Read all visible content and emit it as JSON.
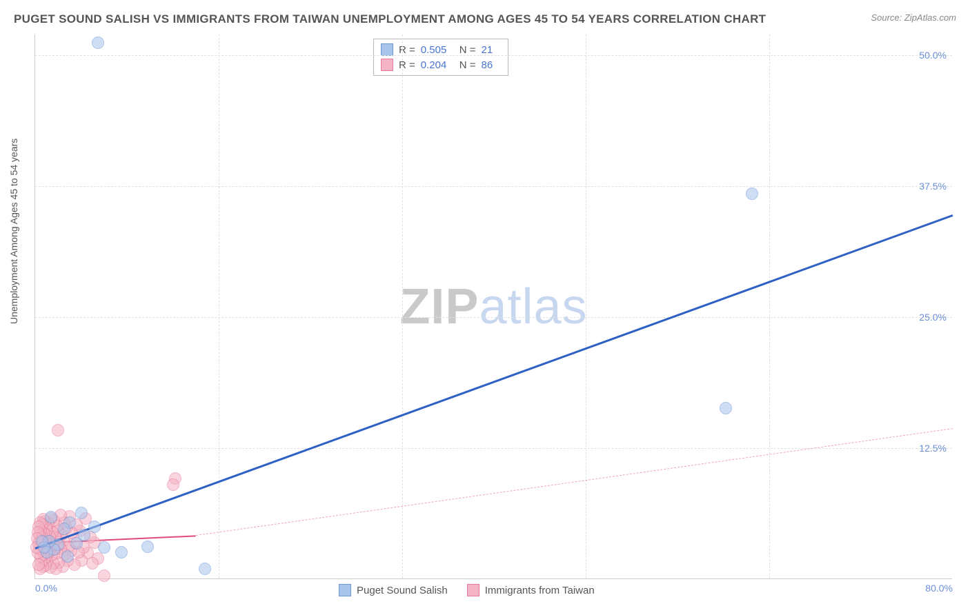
{
  "title": "PUGET SOUND SALISH VS IMMIGRANTS FROM TAIWAN UNEMPLOYMENT AMONG AGES 45 TO 54 YEARS CORRELATION CHART",
  "source": "Source: ZipAtlas.com",
  "y_axis_label": "Unemployment Among Ages 45 to 54 years",
  "watermark": {
    "part1": "ZIP",
    "part2": "atlas"
  },
  "chart": {
    "type": "scatter",
    "xlim": [
      0,
      80
    ],
    "ylim": [
      0,
      52
    ],
    "x_ticks": [
      {
        "v": 0,
        "label": "0.0%",
        "align": "left"
      },
      {
        "v": 80,
        "label": "80.0%",
        "align": "right"
      }
    ],
    "y_ticks": [
      {
        "v": 12.5,
        "label": "12.5%"
      },
      {
        "v": 25,
        "label": "25.0%"
      },
      {
        "v": 37.5,
        "label": "37.5%"
      },
      {
        "v": 50,
        "label": "50.0%"
      }
    ],
    "x_gridlines": [
      16,
      32,
      48,
      64
    ],
    "background_color": "#ffffff",
    "grid_color": "#e0e0e0",
    "series": [
      {
        "name": "Puget Sound Salish",
        "color_fill": "#a9c4ea",
        "color_stroke": "#6b95d6",
        "marker_radius": 9,
        "fill_opacity": 0.55,
        "R": "0.505",
        "N": "21",
        "trend": {
          "solid": {
            "x1": 0,
            "y1": 3.0,
            "x2": 80,
            "y2": 34.8,
            "color": "#2f61c4",
            "width": 3
          }
        },
        "points": [
          {
            "x": 5.5,
            "y": 51.2
          },
          {
            "x": 62.5,
            "y": 36.8
          },
          {
            "x": 60.2,
            "y": 16.3
          },
          {
            "x": 14.8,
            "y": 1.0
          },
          {
            "x": 9.8,
            "y": 3.1
          },
          {
            "x": 7.5,
            "y": 2.6
          },
          {
            "x": 6.0,
            "y": 3.0
          },
          {
            "x": 5.2,
            "y": 5.0
          },
          {
            "x": 4.3,
            "y": 4.2
          },
          {
            "x": 4.0,
            "y": 6.3
          },
          {
            "x": 3.6,
            "y": 3.4
          },
          {
            "x": 3.0,
            "y": 5.4
          },
          {
            "x": 2.8,
            "y": 2.2
          },
          {
            "x": 2.5,
            "y": 4.8
          },
          {
            "x": 2.0,
            "y": 3.3
          },
          {
            "x": 1.6,
            "y": 2.8
          },
          {
            "x": 1.4,
            "y": 5.9
          },
          {
            "x": 1.2,
            "y": 3.6
          },
          {
            "x": 1.0,
            "y": 2.6
          },
          {
            "x": 0.8,
            "y": 3.0
          },
          {
            "x": 0.6,
            "y": 3.6
          }
        ]
      },
      {
        "name": "Immigrants from Taiwan",
        "color_fill": "#f4b4c5",
        "color_stroke": "#e77a9a",
        "marker_radius": 9,
        "fill_opacity": 0.55,
        "R": "0.204",
        "N": "86",
        "trend": {
          "solid": {
            "x1": 0,
            "y1": 3.5,
            "x2": 14,
            "y2": 4.2,
            "color": "#e24a78",
            "width": 2.5
          },
          "dashed": {
            "x1": 14,
            "y1": 4.2,
            "x2": 80,
            "y2": 14.4,
            "color": "#f0a6b8",
            "width": 1.5
          }
        },
        "points": [
          {
            "x": 2.0,
            "y": 14.2
          },
          {
            "x": 12.2,
            "y": 9.6
          },
          {
            "x": 12.0,
            "y": 9.0
          },
          {
            "x": 6.0,
            "y": 0.3
          },
          {
            "x": 5.5,
            "y": 2.0
          },
          {
            "x": 5.2,
            "y": 3.5
          },
          {
            "x": 5.0,
            "y": 1.5
          },
          {
            "x": 4.8,
            "y": 4.0
          },
          {
            "x": 4.6,
            "y": 2.5
          },
          {
            "x": 4.4,
            "y": 5.8
          },
          {
            "x": 4.2,
            "y": 3.0
          },
          {
            "x": 4.0,
            "y": 1.8
          },
          {
            "x": 3.9,
            "y": 4.6
          },
          {
            "x": 3.8,
            "y": 2.6
          },
          {
            "x": 3.6,
            "y": 5.2
          },
          {
            "x": 3.5,
            "y": 3.5
          },
          {
            "x": 3.4,
            "y": 1.4
          },
          {
            "x": 3.2,
            "y": 4.4
          },
          {
            "x": 3.1,
            "y": 2.7
          },
          {
            "x": 3.0,
            "y": 6.0
          },
          {
            "x": 2.9,
            "y": 3.1
          },
          {
            "x": 2.8,
            "y": 1.8
          },
          {
            "x": 2.7,
            "y": 4.9
          },
          {
            "x": 2.6,
            "y": 2.4
          },
          {
            "x": 2.5,
            "y": 5.4
          },
          {
            "x": 2.45,
            "y": 3.7
          },
          {
            "x": 2.4,
            "y": 1.2
          },
          {
            "x": 2.3,
            "y": 4.2
          },
          {
            "x": 2.25,
            "y": 2.9
          },
          {
            "x": 2.2,
            "y": 6.1
          },
          {
            "x": 2.1,
            "y": 3.3
          },
          {
            "x": 2.05,
            "y": 1.6
          },
          {
            "x": 2.0,
            "y": 4.6
          },
          {
            "x": 1.95,
            "y": 2.5
          },
          {
            "x": 1.9,
            "y": 5.1
          },
          {
            "x": 1.85,
            "y": 3.9
          },
          {
            "x": 1.8,
            "y": 1.0
          },
          {
            "x": 1.75,
            "y": 4.0
          },
          {
            "x": 1.7,
            "y": 2.8
          },
          {
            "x": 1.65,
            "y": 5.6
          },
          {
            "x": 1.6,
            "y": 3.2
          },
          {
            "x": 1.55,
            "y": 1.5
          },
          {
            "x": 1.5,
            "y": 4.5
          },
          {
            "x": 1.45,
            "y": 2.3
          },
          {
            "x": 1.4,
            "y": 5.8
          },
          {
            "x": 1.35,
            "y": 3.6
          },
          {
            "x": 1.3,
            "y": 1.1
          },
          {
            "x": 1.25,
            "y": 4.1
          },
          {
            "x": 1.2,
            "y": 2.6
          },
          {
            "x": 1.15,
            "y": 5.3
          },
          {
            "x": 1.1,
            "y": 3.4
          },
          {
            "x": 1.05,
            "y": 1.7
          },
          {
            "x": 1.0,
            "y": 4.7
          },
          {
            "x": 0.98,
            "y": 2.1
          },
          {
            "x": 0.95,
            "y": 5.0
          },
          {
            "x": 0.92,
            "y": 3.8
          },
          {
            "x": 0.9,
            "y": 1.3
          },
          {
            "x": 0.88,
            "y": 4.3
          },
          {
            "x": 0.85,
            "y": 2.7
          },
          {
            "x": 0.82,
            "y": 5.5
          },
          {
            "x": 0.8,
            "y": 3.1
          },
          {
            "x": 0.78,
            "y": 1.9
          },
          {
            "x": 0.75,
            "y": 4.4
          },
          {
            "x": 0.72,
            "y": 2.4
          },
          {
            "x": 0.7,
            "y": 5.7
          },
          {
            "x": 0.68,
            "y": 3.5
          },
          {
            "x": 0.65,
            "y": 1.2
          },
          {
            "x": 0.62,
            "y": 4.0
          },
          {
            "x": 0.6,
            "y": 2.8
          },
          {
            "x": 0.58,
            "y": 5.2
          },
          {
            "x": 0.55,
            "y": 3.3
          },
          {
            "x": 0.52,
            "y": 1.6
          },
          {
            "x": 0.5,
            "y": 4.6
          },
          {
            "x": 0.48,
            "y": 2.2
          },
          {
            "x": 0.45,
            "y": 5.4
          },
          {
            "x": 0.42,
            "y": 3.7
          },
          {
            "x": 0.4,
            "y": 1.0
          },
          {
            "x": 0.38,
            "y": 4.2
          },
          {
            "x": 0.35,
            "y": 2.9
          },
          {
            "x": 0.32,
            "y": 5.0
          },
          {
            "x": 0.3,
            "y": 3.4
          },
          {
            "x": 0.28,
            "y": 1.4
          },
          {
            "x": 0.25,
            "y": 4.5
          },
          {
            "x": 0.22,
            "y": 2.5
          },
          {
            "x": 0.2,
            "y": 3.9
          },
          {
            "x": 0.15,
            "y": 3.0
          }
        ]
      }
    ]
  }
}
